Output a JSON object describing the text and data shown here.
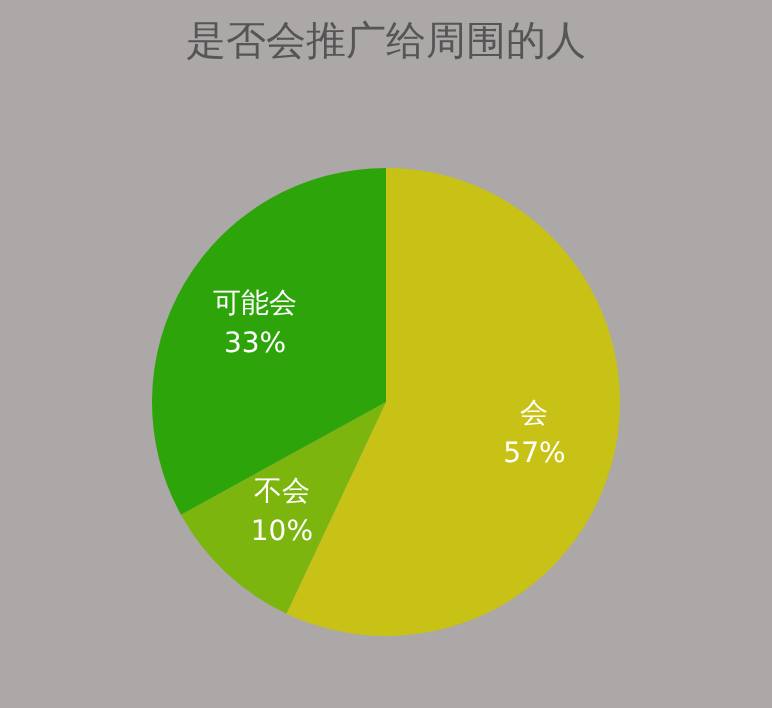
{
  "chart_data": {
    "type": "pie",
    "title": "是否会推广给周围的人",
    "categories": [
      "会",
      "不会",
      "可能会"
    ],
    "values": [
      57,
      10,
      33
    ],
    "value_labels": [
      "57%",
      "10%",
      "33%"
    ],
    "colors": [
      "#c8c216",
      "#7db50f",
      "#2ea40b"
    ],
    "legend": false
  }
}
